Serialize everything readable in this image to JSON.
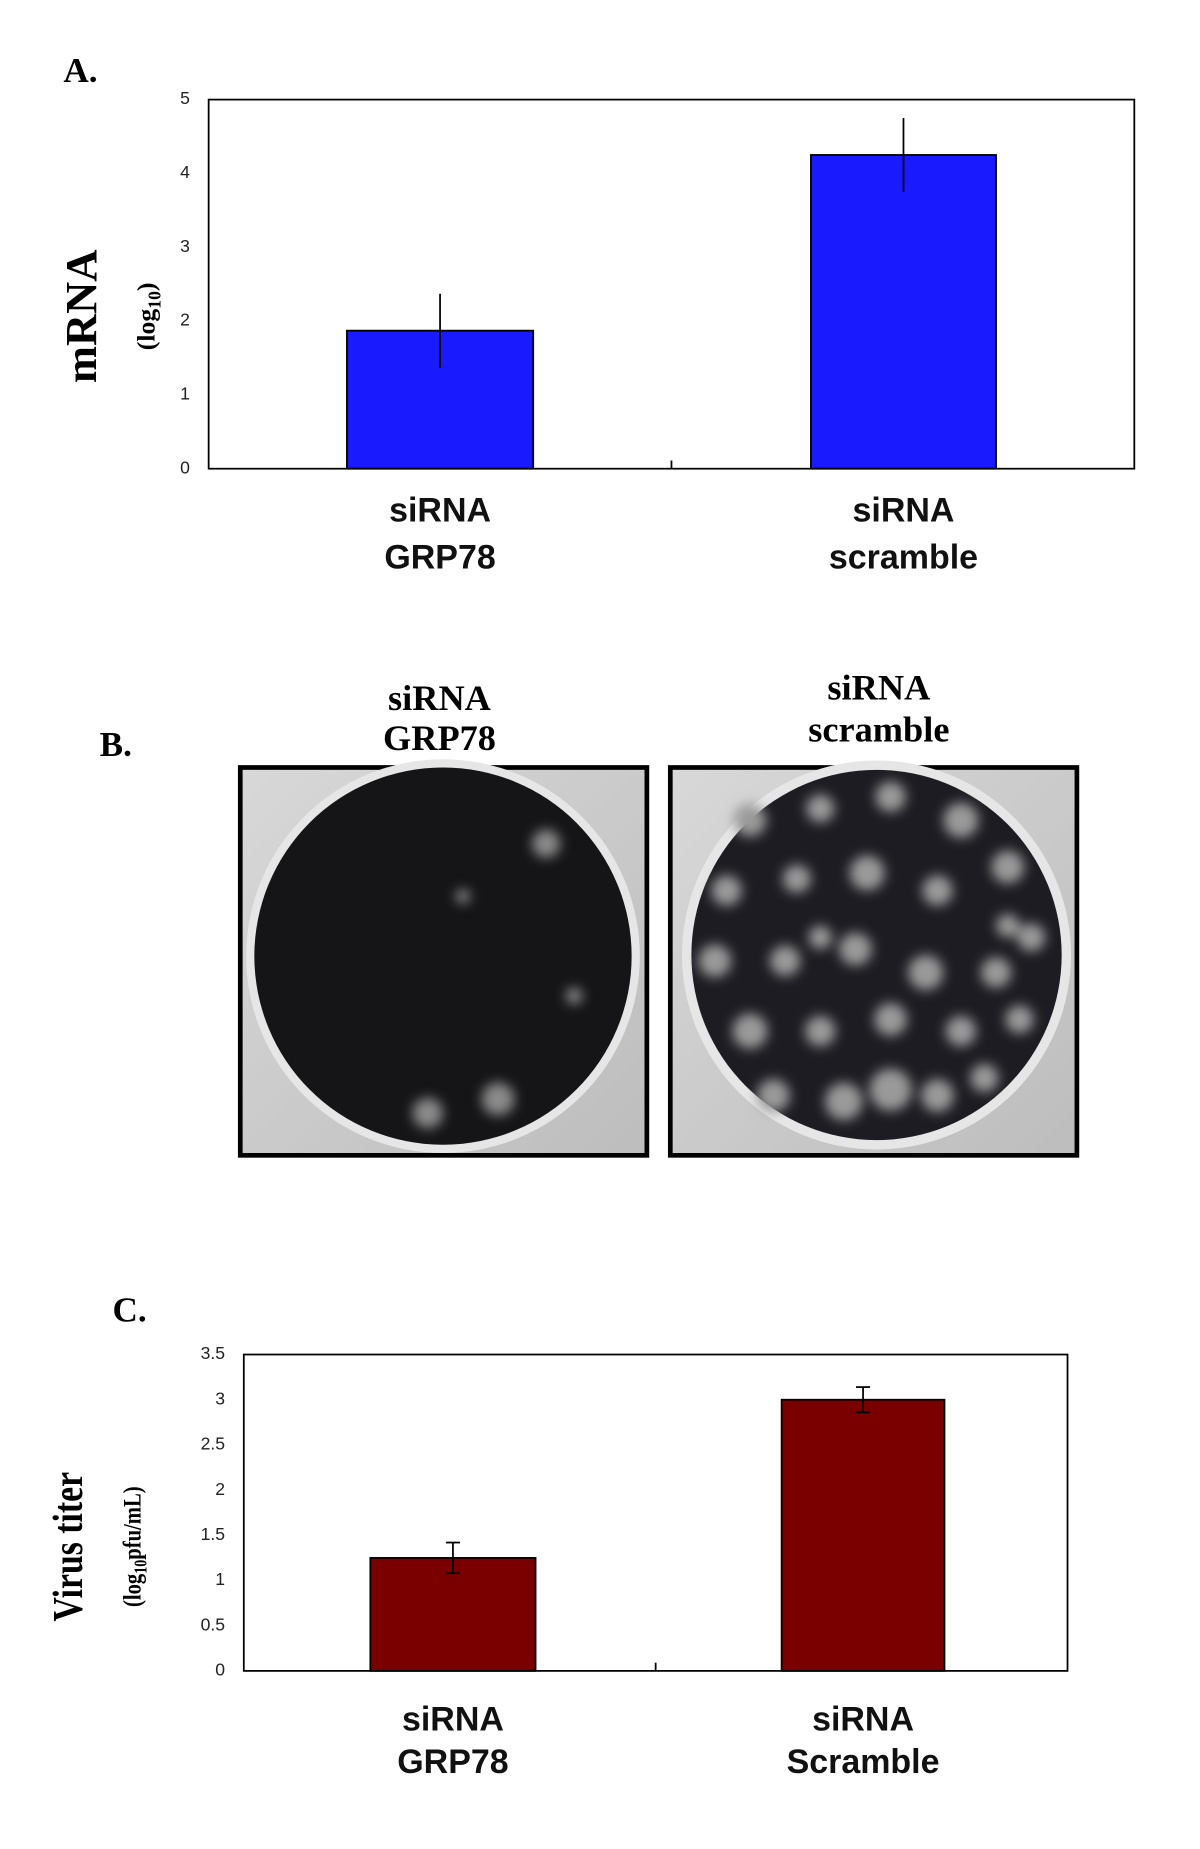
{
  "panel_labels": [
    "A.",
    "B.",
    "C."
  ],
  "panel_b": {
    "labels": [
      [
        "siRNA",
        "GRP78"
      ],
      [
        "siRNA",
        "scramble"
      ]
    ]
  },
  "chart_data": [
    {
      "type": "bar",
      "ylabel": "mRNA",
      "ylabel_sub": [
        "(log",
        "10",
        ")"
      ],
      "categories": [
        [
          "siRNA",
          "GRP78"
        ],
        [
          "siRNA",
          "scramble"
        ]
      ],
      "values": [
        1.87,
        4.25
      ],
      "errors": [
        0.5,
        0.5
      ],
      "color": "#1a1aff",
      "ylim": [
        0,
        5
      ],
      "yticks": [
        0,
        1,
        2,
        3,
        4,
        5
      ],
      "error_caps": false
    },
    {
      "type": "bar",
      "ylabel": "Virus titer",
      "ylabel_sub": [
        "(log",
        "10",
        "pfu/mL)"
      ],
      "categories": [
        [
          "siRNA",
          "GRP78"
        ],
        [
          "siRNA",
          "Scramble"
        ]
      ],
      "values": [
        1.25,
        3.0
      ],
      "errors": [
        0.17,
        0.14
      ],
      "color": "#7a0000",
      "ylim": [
        0,
        3.5
      ],
      "yticks": [
        0,
        0.5,
        1,
        1.5,
        2,
        2.5,
        3,
        3.5
      ],
      "error_caps": true
    }
  ]
}
